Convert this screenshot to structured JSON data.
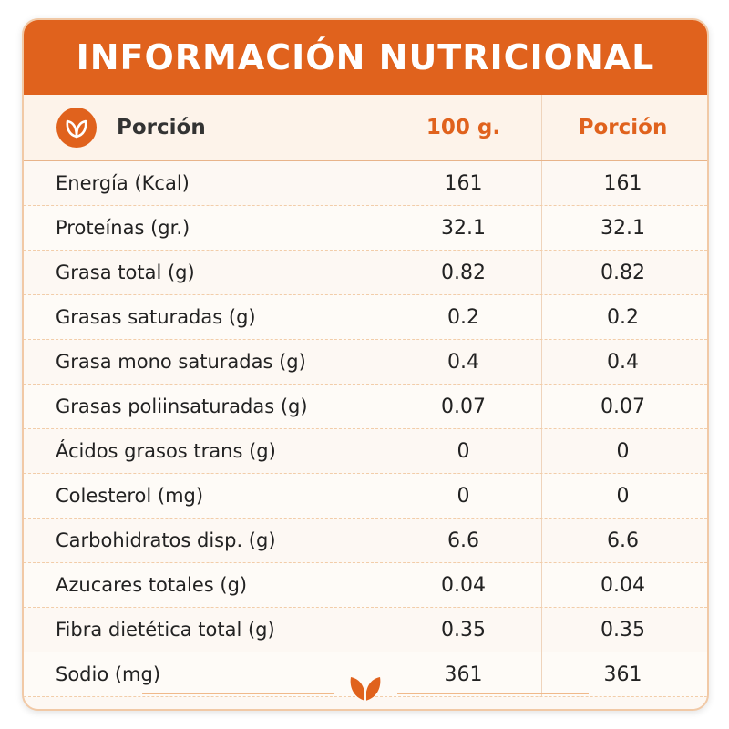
{
  "title": "INFORMACIÓN NUTRICIONAL",
  "header": {
    "label": "Porción",
    "col1": "100 g.",
    "col2": "Porción",
    "icon": "leaf-icon"
  },
  "rows": [
    {
      "label": "Energía (Kcal)",
      "v1": "161",
      "v2": "161"
    },
    {
      "label": "Proteínas (gr.)",
      "v1": "32.1",
      "v2": "32.1"
    },
    {
      "label": "Grasa total (g)",
      "v1": "0.82",
      "v2": "0.82"
    },
    {
      "label": "Grasas saturadas (g)",
      "v1": "0.2",
      "v2": "0.2"
    },
    {
      "label": "Grasa mono saturadas (g)",
      "v1": "0.4",
      "v2": "0.4"
    },
    {
      "label": "Grasas poliinsaturadas (g)",
      "v1": "0.07",
      "v2": "0.07"
    },
    {
      "label": "Ácidos grasos trans (g)",
      "v1": "0",
      "v2": "0"
    },
    {
      "label": "Colesterol (mg)",
      "v1": "0",
      "v2": "0"
    },
    {
      "label": "Carbohidratos disp. (g)",
      "v1": "6.6",
      "v2": "6.6"
    },
    {
      "label": "Azucares totales (g)",
      "v1": "0.04",
      "v2": "0.04"
    },
    {
      "label": "Fibra dietética total (g)",
      "v1": "0.35",
      "v2": "0.35"
    },
    {
      "label": "Sodio (mg)",
      "v1": "361",
      "v2": "361"
    }
  ],
  "colors": {
    "accent": "#e0621d",
    "background": "#fdf8f3"
  }
}
